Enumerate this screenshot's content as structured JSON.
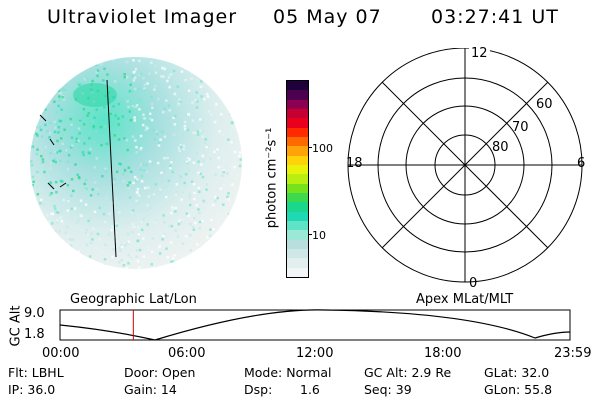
{
  "header": {
    "instrument": "Ultraviolet Imager",
    "date": "05 May 07",
    "time": "03:27:41 UT"
  },
  "colorbar": {
    "unit_label": "photon cm⁻²s⁻¹",
    "ticks": [
      "100",
      "10"
    ],
    "colors": [
      "#f3f6f6",
      "#e2efef",
      "#cfe7e7",
      "#b8dede",
      "#9be8d6",
      "#5fe2c6",
      "#1fd9b4",
      "#19d88c",
      "#3fd94e",
      "#76e21c",
      "#b8ef10",
      "#e8f20b",
      "#ffd30a",
      "#ffa30a",
      "#ff6a00",
      "#ff2a00",
      "#e8001d",
      "#c60033",
      "#8d0051",
      "#4d0050",
      "#1e003a"
    ]
  },
  "polar_plot": {
    "hour_labels": {
      "top": "12",
      "bottom": "0",
      "left": "18",
      "right": "6"
    },
    "lat_labels": [
      "60",
      "70",
      "80"
    ]
  },
  "timeline": {
    "left_title": "Geographic Lat/Lon",
    "right_title": "Apex MLat/MLT",
    "axis_label": "GC Alt",
    "y_ticks": [
      "9.0",
      "1.8"
    ],
    "x_ticks": [
      "00:00",
      "06:00",
      "12:00",
      "18:00",
      "23:59"
    ],
    "marker_time": "03:27",
    "marker_color": "#cc0000"
  },
  "info": {
    "flt": "Flt: LBHL",
    "ip": "IP: 36.0",
    "door": "Door: Open",
    "gain": "Gain: 14",
    "mode": "Mode: Normal",
    "dsp_label": "Dsp:",
    "dsp_value": "1.6",
    "gc_alt": "GC Alt: 2.9 Re",
    "seq": "Seq: 39",
    "glat": "GLat: 32.0",
    "glon": "GLon: 55.8"
  }
}
